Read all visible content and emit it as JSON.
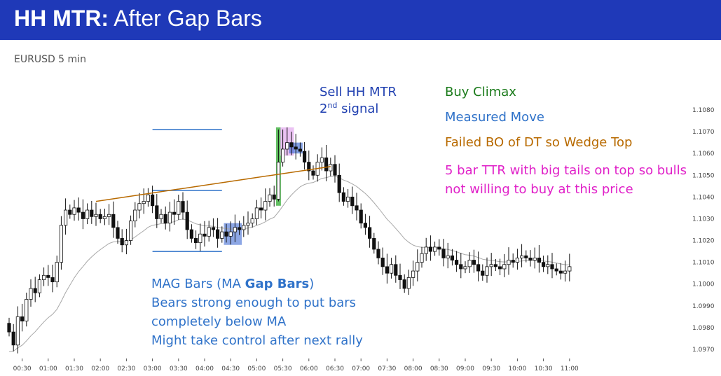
{
  "title": {
    "bold": "HH MTR:",
    "rest": " After Gap Bars"
  },
  "subtitle": "EURUSD 5 min",
  "colors": {
    "title_bg": "#1f39b8",
    "blue_text": "#2f72c9",
    "navy_text": "#1f3fb0",
    "green_text": "#1a7a1a",
    "orange_text": "#b86a00",
    "magenta_text": "#e020c8",
    "ma": "#a8a8a8",
    "trendline": "#b86a00",
    "level_lines": "#2f72c9",
    "green_box": "#2eaa2e",
    "pink_box": "#e6b3f0",
    "blue_box": "#2f5fd0"
  },
  "annotations": {
    "sell_line1": "Sell HH MTR",
    "sell_line2_num": "2",
    "sell_line2_sup": "nd",
    "sell_line2_rest": " signal",
    "buy_climax": "Buy Climax",
    "measured_move": "Measured Move",
    "failed_bo": "Failed BO of DT so Wedge Top",
    "ttr_line1": "5 bar TTR with big tails on top so bulls",
    "ttr_line2": "not willing to buy at this price",
    "mag_line1_pre": "MAG Bars (MA ",
    "mag_line1_bold": "Gap Bars",
    "mag_line1_post": ")",
    "mag_line2": "Bears strong enough to put bars",
    "mag_line3": "completely below MA",
    "mag_line4": "Might take control after next rally"
  },
  "chart_data": {
    "type": "candlestick",
    "x_ticks": [
      "00:30",
      "01:00",
      "01:30",
      "02:00",
      "02:30",
      "03:00",
      "03:30",
      "04:00",
      "04:30",
      "05:00",
      "05:30",
      "06:00",
      "06:30",
      "07:00",
      "07:30",
      "08:00",
      "08:30",
      "09:00",
      "09:30",
      "10:00",
      "10:30",
      "11:00"
    ],
    "y_ticks": [
      "1.0970",
      "1.0980",
      "1.0990",
      "1.1000",
      "1.1010",
      "1.1020",
      "1.1030",
      "1.1040",
      "1.1050",
      "1.1060",
      "1.1070",
      "1.1080"
    ],
    "y_tick_values": [
      1.097,
      1.098,
      1.099,
      1.1,
      1.101,
      1.102,
      1.103,
      1.104,
      1.105,
      1.106,
      1.107,
      1.108
    ],
    "ylim": [
      1.0965,
      1.1082
    ],
    "bar_minutes": 5,
    "first_bar_time": "00:15",
    "closes": [
      1.0978,
      1.0972,
      1.0985,
      1.0983,
      1.0993,
      1.0998,
      1.0996,
      1.1002,
      1.1004,
      1.1003,
      1.1001,
      1.101,
      1.1027,
      1.1034,
      1.1032,
      1.1035,
      1.1033,
      1.103,
      1.1034,
      1.1031,
      1.1032,
      1.103,
      1.1031,
      1.1032,
      1.1026,
      1.1021,
      1.1018,
      1.102,
      1.1029,
      1.1034,
      1.1037,
      1.1038,
      1.1041,
      1.1036,
      1.103,
      1.1032,
      1.1028,
      1.1033,
      1.1032,
      1.1038,
      1.1033,
      1.1025,
      1.1021,
      1.1019,
      1.1023,
      1.1022,
      1.1026,
      1.1025,
      1.1021,
      1.1024,
      1.1022,
      1.1024,
      1.1026,
      1.1025,
      1.1027,
      1.1028,
      1.103,
      1.1035,
      1.1034,
      1.1038,
      1.1041,
      1.1039,
      1.1056,
      1.1062,
      1.1065,
      1.1063,
      1.1062,
      1.1061,
      1.1056,
      1.1052,
      1.105,
      1.1056,
      1.1058,
      1.1052,
      1.1055,
      1.105,
      1.1042,
      1.1038,
      1.104,
      1.1036,
      1.1034,
      1.1028,
      1.1026,
      1.1021,
      1.1016,
      1.1012,
      1.1008,
      1.1005,
      1.1009,
      1.1004,
      1.1002,
      1.0998,
      1.1003,
      1.1006,
      1.101,
      1.1014,
      1.1017,
      1.1015,
      1.1017,
      1.1016,
      1.1012,
      1.1013,
      1.1011,
      1.1009,
      1.1007,
      1.1008,
      1.1011,
      1.1009,
      1.1006,
      1.1004,
      1.1008,
      1.1009,
      1.1008,
      1.1007,
      1.1009,
      1.1011,
      1.101,
      1.1012,
      1.1013,
      1.1012,
      1.1011,
      1.1012,
      1.101,
      1.1008,
      1.1009,
      1.1007,
      1.1006,
      1.1005,
      1.1006,
      1.1008
    ]
  }
}
